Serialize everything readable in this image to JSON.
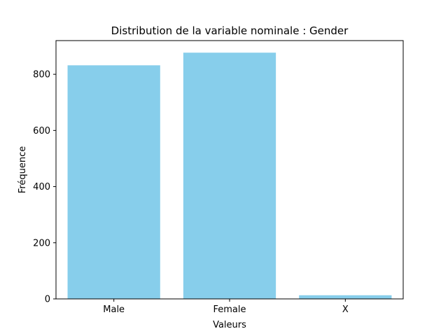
{
  "chart_data": {
    "type": "bar",
    "title": "Distribution de la variable nominale : Gender",
    "xlabel": "Valeurs",
    "ylabel": "Fréquence",
    "categories": [
      "Male",
      "Female",
      "X"
    ],
    "values": [
      832,
      877,
      13
    ],
    "ylim": [
      0,
      920
    ],
    "yticks": [
      0,
      200,
      400,
      600,
      800
    ],
    "grid": false,
    "bar_color": "#87ceeb"
  }
}
